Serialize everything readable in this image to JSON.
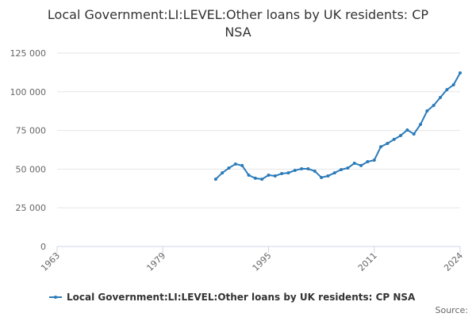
{
  "chart_data": {
    "type": "line",
    "title": [
      "Local Government:LI:LEVEL:Other loans by UK residents: CP",
      "NSA"
    ],
    "x": [
      1987,
      1988,
      1989,
      1990,
      1991,
      1992,
      1993,
      1994,
      1995,
      1996,
      1997,
      1998,
      1999,
      2000,
      2001,
      2002,
      2003,
      2004,
      2005,
      2006,
      2007,
      2008,
      2009,
      2010,
      2011,
      2012,
      2013,
      2014,
      2015,
      2016,
      2017,
      2018,
      2019,
      2020,
      2021,
      2022,
      2023,
      2024
    ],
    "series": [
      {
        "name": "Local Government:LI:LEVEL:Other loans by UK residents: CP NSA",
        "color": "#2b7bb9",
        "values": [
          43500,
          47600,
          50700,
          53300,
          52300,
          46100,
          44100,
          43500,
          46100,
          45600,
          47100,
          47600,
          49200,
          50200,
          50200,
          48700,
          44600,
          45600,
          47600,
          49700,
          50700,
          53800,
          52300,
          54800,
          55800,
          64500,
          66600,
          69200,
          71700,
          75300,
          72700,
          78900,
          87600,
          91200,
          96300,
          101400,
          104500,
          112200
        ]
      }
    ],
    "xlim": [
      1963,
      2024
    ],
    "xticks": [
      1963,
      1979,
      1995,
      2011,
      2024
    ],
    "ylim": [
      0,
      125000
    ],
    "yticks": [
      0,
      {
        "value": 25000,
        "label": "25 000"
      },
      {
        "value": 50000,
        "label": "50 000"
      },
      {
        "value": 75000,
        "label": "75 000"
      },
      {
        "value": 100000,
        "label": "100 000"
      },
      {
        "value": 125000,
        "label": "125 000"
      }
    ],
    "grid": true,
    "legend": "bottom",
    "source": "Source:"
  }
}
